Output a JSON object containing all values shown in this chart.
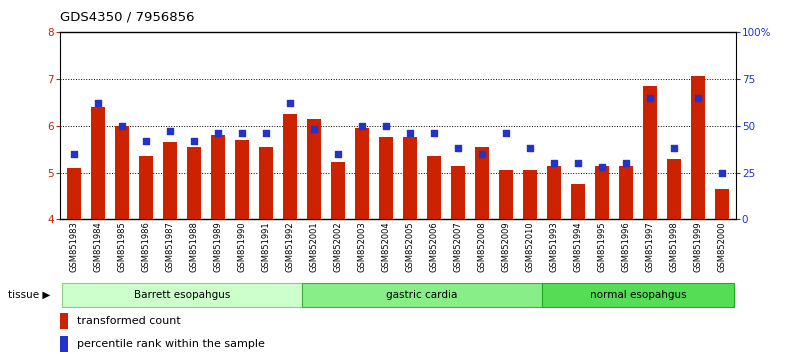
{
  "title": "GDS4350 / 7956856",
  "samples": [
    "GSM851983",
    "GSM851984",
    "GSM851985",
    "GSM851986",
    "GSM851987",
    "GSM851988",
    "GSM851989",
    "GSM851990",
    "GSM851991",
    "GSM851992",
    "GSM852001",
    "GSM852002",
    "GSM852003",
    "GSM852004",
    "GSM852005",
    "GSM852006",
    "GSM852007",
    "GSM852008",
    "GSM852009",
    "GSM852010",
    "GSM851993",
    "GSM851994",
    "GSM851995",
    "GSM851996",
    "GSM851997",
    "GSM851998",
    "GSM851999",
    "GSM852000"
  ],
  "red_values": [
    5.1,
    6.4,
    6.0,
    5.35,
    5.65,
    5.55,
    5.8,
    5.7,
    5.55,
    6.25,
    6.15,
    5.22,
    5.95,
    5.75,
    5.75,
    5.35,
    5.15,
    5.55,
    5.05,
    5.05,
    5.15,
    4.75,
    5.15,
    5.15,
    6.85,
    5.3,
    7.05,
    4.65
  ],
  "blue_values_pct": [
    35,
    62,
    50,
    42,
    47,
    42,
    46,
    46,
    46,
    62,
    48,
    35,
    50,
    50,
    46,
    46,
    38,
    35,
    46,
    38,
    30,
    30,
    28,
    30,
    65,
    38,
    65,
    25
  ],
  "groups": [
    {
      "label": "Barrett esopahgus",
      "start": 0,
      "end": 10,
      "color": "#ccffcc",
      "edge": "#88cc88"
    },
    {
      "label": "gastric cardia",
      "start": 10,
      "end": 20,
      "color": "#88ee88",
      "edge": "#44aa44"
    },
    {
      "label": "normal esopahgus",
      "start": 20,
      "end": 28,
      "color": "#55dd55",
      "edge": "#22aa22"
    }
  ],
  "ylim_left": [
    4,
    8
  ],
  "ylim_right": [
    0,
    100
  ],
  "yticks_left": [
    4,
    5,
    6,
    7,
    8
  ],
  "yticks_right": [
    0,
    25,
    50,
    75,
    100
  ],
  "yticklabels_right": [
    "0",
    "25",
    "50",
    "75",
    "100%"
  ],
  "bar_color": "#cc2200",
  "dot_color": "#2233cc",
  "bar_bottom": 4.0,
  "dot_size": 18,
  "legend_red": "transformed count",
  "legend_blue": "percentile rank within the sample",
  "tissue_label": "tissue"
}
